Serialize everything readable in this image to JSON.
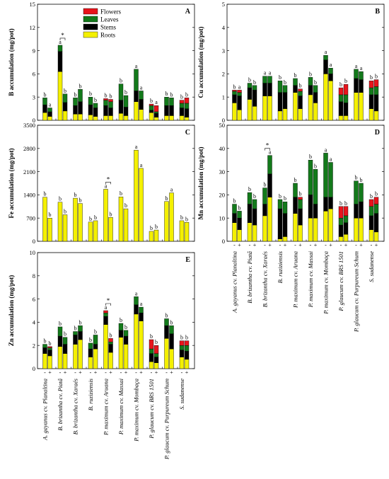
{
  "legend": [
    {
      "name": "Flowers",
      "color": "#e8141c"
    },
    {
      "name": "Leaves",
      "color": "#137a1b"
    },
    {
      "name": "Stems",
      "color": "#000000"
    },
    {
      "name": "Roots",
      "color": "#f4f000"
    }
  ],
  "colors": {
    "Flowers": "#e8141c",
    "Leaves": "#137a1b",
    "Stems": "#000000",
    "Roots": "#f4f000"
  },
  "categories": [
    "A. gayanus cv. Planaltina",
    "B. brizantha cv. Piatã",
    "B. brizantha cv. Xaraés",
    "B. ruziziensis",
    "P. maximum cv. Aruana",
    "P. maximum cv. Massai",
    "P. maximum cv. Mombaça",
    "P. glaucum cv. BRS 1501",
    "P. glaucum cv. Purpureum Schum",
    "S. sudanense"
  ],
  "treatments": [
    "-",
    "+"
  ],
  "chart_data": [
    {
      "panel": "A",
      "type": "bar",
      "stacked": true,
      "ylabel": "B accumulation (mg/pot)",
      "ylim": [
        0,
        15
      ],
      "yticks": [
        0,
        3,
        6,
        9,
        12,
        15
      ],
      "series_order": [
        "Roots",
        "Stems",
        "Leaves",
        "Flowers"
      ],
      "series": [
        {
          "name": "Roots",
          "values": [
            1.0,
            0.5,
            6.3,
            1.2,
            0.8,
            0.8,
            0.7,
            0.5,
            0.6,
            0.6,
            0.9,
            0.6,
            2.4,
            1.4,
            1.0,
            0.4,
            0.6,
            0.6,
            0.6,
            0.4
          ]
        },
        {
          "name": "Stems",
          "values": [
            1.0,
            0.6,
            2.6,
            1.1,
            1.1,
            1.6,
            1.3,
            1.1,
            1.3,
            1.0,
            1.7,
            1.1,
            1.4,
            1.3,
            0.3,
            0.5,
            1.3,
            1.3,
            1.0,
            1.1
          ]
        },
        {
          "name": "Leaves",
          "values": [
            0.9,
            0.5,
            0.8,
            1.1,
            1.0,
            1.6,
            1.0,
            0.6,
            0.7,
            0.8,
            2.1,
            1.5,
            2.8,
            1.1,
            0.6,
            0.2,
            1.1,
            1.0,
            0.6,
            0.7
          ]
        },
        {
          "name": "Flowers",
          "values": [
            0,
            0,
            0,
            0,
            0,
            0,
            0,
            0,
            0.2,
            0.3,
            0,
            0,
            0,
            0,
            0.2,
            0.8,
            0,
            0,
            0.4,
            0.7
          ]
        }
      ],
      "letters": [
        "b",
        "a",
        "a",
        "b",
        "b",
        "b",
        "b",
        "b",
        "b",
        "b",
        "b",
        "b",
        "a",
        "a",
        "b",
        "a",
        "b",
        "b",
        "b",
        "b"
      ],
      "significance": [
        {
          "pair": 1,
          "label": "*"
        }
      ]
    },
    {
      "panel": "B",
      "type": "bar",
      "stacked": true,
      "ylabel": "Cu accumulation (mg/pot)",
      "ylim": [
        0,
        5
      ],
      "yticks": [
        0,
        1,
        2,
        3,
        4,
        5
      ],
      "series_order": [
        "Roots",
        "Stems",
        "Leaves",
        "Flowers"
      ],
      "series": [
        {
          "name": "Roots",
          "values": [
            0.75,
            0.45,
            0.9,
            0.6,
            1.05,
            1.05,
            0.4,
            0.5,
            1.2,
            0.5,
            1.1,
            0.75,
            2.0,
            1.7,
            0.2,
            0.2,
            1.2,
            1.2,
            0.5,
            0.4
          ]
        },
        {
          "name": "Stems",
          "values": [
            0.35,
            0.6,
            0.5,
            0.7,
            0.55,
            0.55,
            0.8,
            0.7,
            0.3,
            0.55,
            0.4,
            0.45,
            0.6,
            0.3,
            0.6,
            0.55,
            0.6,
            0.55,
            0.6,
            0.7
          ]
        },
        {
          "name": "Leaves",
          "values": [
            0.15,
            0.15,
            0.2,
            0.2,
            0.3,
            0.3,
            0.5,
            0.3,
            0.3,
            0.2,
            0.35,
            0.3,
            0.2,
            0.25,
            0.3,
            0.35,
            0.4,
            0.35,
            0.3,
            0.35
          ]
        },
        {
          "name": "Flowers",
          "values": [
            0.05,
            0.1,
            0,
            0,
            0,
            0,
            0,
            0,
            0,
            0.1,
            0,
            0,
            0,
            0,
            0.3,
            0.45,
            0,
            0,
            0.3,
            0.3
          ]
        }
      ],
      "letters": [
        "b",
        "a",
        "b",
        "b",
        "a",
        "a",
        "b",
        "b",
        "b",
        "b",
        "b",
        "b",
        "a",
        "a",
        "b",
        "b",
        "a",
        "a",
        "b",
        "b"
      ]
    },
    {
      "panel": "C",
      "type": "bar",
      "ylabel": "Fe accumulation (mg/pot)",
      "ylim": [
        0,
        3500
      ],
      "yticks": [
        0,
        700,
        1400,
        2100,
        2800,
        3500
      ],
      "series_order": [
        "Roots"
      ],
      "series": [
        {
          "name": "Roots",
          "values": [
            1330,
            700,
            1180,
            800,
            1300,
            1140,
            580,
            620,
            1570,
            720,
            1340,
            980,
            2750,
            2200,
            300,
            340,
            1200,
            1460,
            620,
            570
          ]
        }
      ],
      "letters": [
        "b",
        "b",
        "b",
        "b",
        "b",
        "b",
        "b",
        "b",
        "a",
        "b",
        "b",
        "b",
        "a",
        "a",
        "b",
        "b",
        "b",
        "a",
        "b",
        "b"
      ],
      "significance": [
        {
          "pair": 4,
          "label": "*"
        }
      ]
    },
    {
      "panel": "D",
      "type": "bar",
      "stacked": true,
      "ylabel": "Mn accumulation (mg/pot)",
      "ylim": [
        0,
        50
      ],
      "yticks": [
        0,
        10,
        20,
        30,
        40,
        50
      ],
      "series_order": [
        "Roots",
        "Stems",
        "Leaves",
        "Flowers"
      ],
      "series": [
        {
          "name": "Roots",
          "values": [
            8,
            5,
            8,
            7,
            11,
            19,
            1,
            2,
            12,
            7,
            10,
            10,
            13,
            14,
            2,
            3,
            10,
            10,
            5,
            4
          ]
        },
        {
          "name": "Stems",
          "values": [
            4,
            5,
            8,
            7,
            5,
            10,
            13,
            10,
            7,
            7,
            10,
            6,
            6,
            5,
            5,
            5,
            6,
            7,
            6,
            8
          ]
        },
        {
          "name": "Leaves",
          "values": [
            4,
            3,
            5,
            4,
            7,
            8,
            4,
            5,
            6,
            4,
            15,
            15,
            19,
            15,
            3,
            3,
            10,
            8,
            4,
            4
          ]
        },
        {
          "name": "Flowers",
          "values": [
            0,
            0,
            0,
            0,
            0,
            0,
            0,
            0,
            0,
            1,
            0,
            0,
            0,
            0,
            5,
            4,
            0,
            0,
            3,
            3
          ]
        }
      ],
      "letters": [
        "b",
        "b",
        "b",
        "b",
        "b",
        "a",
        "b",
        "b",
        "b",
        "b",
        "b",
        "b",
        "a",
        "a",
        "b",
        "b",
        "b",
        "b",
        "b",
        "b"
      ],
      "significance": [
        {
          "pair": 2,
          "label": "*"
        }
      ]
    },
    {
      "panel": "E",
      "type": "bar",
      "stacked": true,
      "ylabel": "Zn accumulation (mg/pot)",
      "ylim": [
        0,
        10
      ],
      "yticks": [
        0,
        2,
        4,
        6,
        8,
        10
      ],
      "series_order": [
        "Roots",
        "Stems",
        "Leaves",
        "Flowers"
      ],
      "series": [
        {
          "name": "Roots",
          "values": [
            1.3,
            1.1,
            1.9,
            1.3,
            2.1,
            2.5,
            1.0,
            1.7,
            3.8,
            1.4,
            2.7,
            2.1,
            4.7,
            4.1,
            0.6,
            0.5,
            2.6,
            1.7,
            1.0,
            0.8
          ]
        },
        {
          "name": "Stems",
          "values": [
            0.5,
            0.5,
            0.9,
            0.8,
            0.8,
            0.7,
            0.7,
            0.4,
            0.7,
            0.7,
            0.6,
            0.7,
            0.8,
            0.7,
            0.7,
            0.5,
            1.1,
            1.3,
            0.6,
            0.7
          ]
        },
        {
          "name": "Leaves",
          "values": [
            0.3,
            0.2,
            0.8,
            0.6,
            0.3,
            0.5,
            0.5,
            0.8,
            0.3,
            0.2,
            0.6,
            0.5,
            0.7,
            0.5,
            0.4,
            0.3,
            0.6,
            0.7,
            0.4,
            0.5
          ]
        },
        {
          "name": "Flowers",
          "values": [
            0,
            0.1,
            0,
            0,
            0,
            0,
            0,
            0,
            0.2,
            0.3,
            0,
            0,
            0,
            0,
            0.8,
            0.7,
            0,
            0,
            0.4,
            0.4
          ]
        }
      ],
      "letters": [
        "b",
        "b",
        "b",
        "b",
        "b",
        "b",
        "b",
        "b",
        "a",
        "b",
        "b",
        "b",
        "a",
        "a",
        "b",
        "b",
        "b",
        "b",
        "b",
        "b"
      ],
      "significance": [
        {
          "pair": 4,
          "label": "*"
        }
      ]
    }
  ]
}
